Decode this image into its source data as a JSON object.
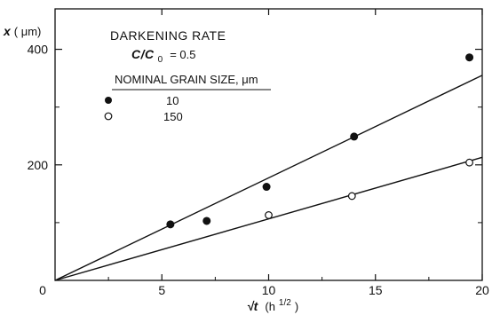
{
  "chart_data": {
    "type": "scatter",
    "title": "DARKENING RATE",
    "subtitle": {
      "symbol": "C/C",
      "subscript": "0",
      "value": "= 0.5"
    },
    "legend_title": "NOMINAL GRAIN SIZE, μm",
    "legend_placement": "top-left",
    "ylabel": {
      "symbol": "x",
      "unit": "( μm)"
    },
    "xlabel": {
      "symbol": "√t",
      "unit": "(h",
      "exponent": "1/2",
      "close": ")"
    },
    "xlim": [
      0,
      20
    ],
    "ylim": [
      0,
      470
    ],
    "origin_label": "0",
    "x_ticks": [
      5,
      10,
      15,
      20
    ],
    "y_ticks": [
      200,
      400
    ],
    "x_tick_labels": [
      "5",
      "10",
      "15",
      "20"
    ],
    "y_tick_labels": [
      "200",
      "400"
    ],
    "series": [
      {
        "name": "10",
        "marker": "filled-circle",
        "points": [
          {
            "x": 5.4,
            "y": 97
          },
          {
            "x": 7.1,
            "y": 103
          },
          {
            "x": 9.9,
            "y": 162
          },
          {
            "x": 14.0,
            "y": 249
          },
          {
            "x": 19.4,
            "y": 386
          }
        ],
        "fit_line": {
          "x1": 0,
          "y1": 0,
          "x2": 20,
          "y2": 355
        }
      },
      {
        "name": "150",
        "marker": "open-circle",
        "points": [
          {
            "x": 10.0,
            "y": 113
          },
          {
            "x": 13.9,
            "y": 146
          },
          {
            "x": 19.4,
            "y": 204
          }
        ],
        "fit_line": {
          "x1": 0,
          "y1": 0,
          "x2": 20,
          "y2": 213
        }
      }
    ]
  }
}
